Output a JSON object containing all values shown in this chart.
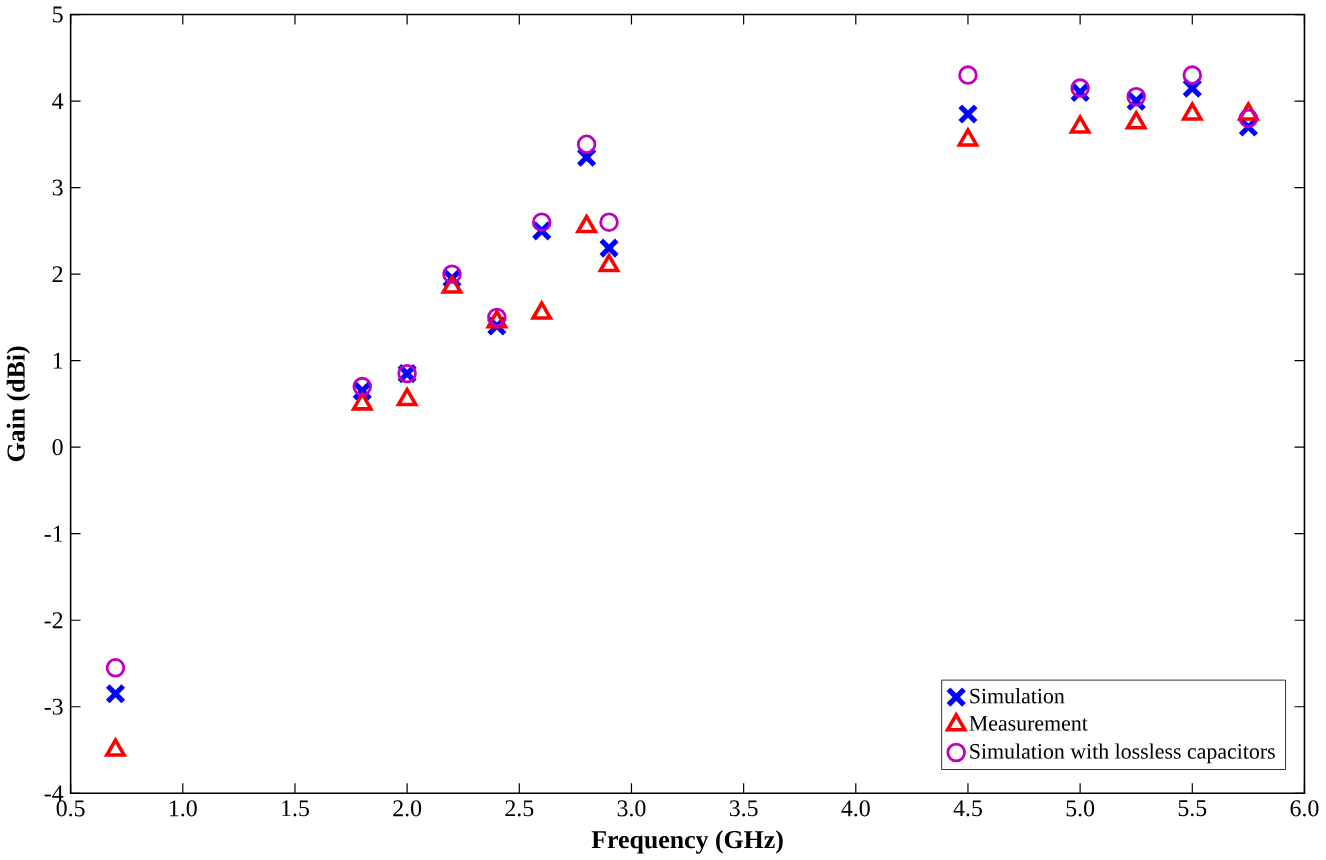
{
  "chart_data": {
    "type": "scatter",
    "xlabel": "Frequency (GHz)",
    "ylabel": "Gain (dBi)",
    "x": [
      0.7,
      1.8,
      2.0,
      2.2,
      2.4,
      2.6,
      2.8,
      2.9,
      4.5,
      5.0,
      5.25,
      5.5,
      5.75
    ],
    "series": [
      {
        "name": "Simulation",
        "color": "#0000ff",
        "marker": "cross",
        "values": [
          -2.85,
          0.65,
          0.85,
          1.95,
          1.4,
          2.5,
          3.35,
          2.3,
          3.85,
          4.1,
          4.0,
          4.15,
          3.7
        ]
      },
      {
        "name": "Measurement",
        "color": "#ff0000",
        "marker": "triangle",
        "values": [
          -3.5,
          0.5,
          0.55,
          1.85,
          1.45,
          1.55,
          2.55,
          2.1,
          3.55,
          3.7,
          3.75,
          3.85,
          3.85
        ]
      },
      {
        "name": "Simulation with lossless capacitors",
        "color": "#bf00bf",
        "marker": "circle",
        "values": [
          -2.55,
          0.7,
          0.85,
          2.0,
          1.5,
          2.6,
          3.5,
          2.6,
          4.3,
          4.15,
          4.05,
          4.3,
          3.8
        ]
      }
    ],
    "xlim": [
      0.5,
      6.0
    ],
    "ylim": [
      -4,
      5
    ],
    "xticks": [
      {
        "value": 0.5,
        "label": "0.5"
      },
      {
        "value": 1.0,
        "label": "1.0"
      },
      {
        "value": 1.5,
        "label": "1.5"
      },
      {
        "value": 2.0,
        "label": "2.0"
      },
      {
        "value": 2.5,
        "label": "2.5"
      },
      {
        "value": 3.0,
        "label": "3.0"
      },
      {
        "value": 3.5,
        "label": "3.5"
      },
      {
        "value": 4.0,
        "label": "4.0"
      },
      {
        "value": 4.5,
        "label": "4.5"
      },
      {
        "value": 5.0,
        "label": "5.0"
      },
      {
        "value": 5.5,
        "label": "5.5"
      },
      {
        "value": 6.0,
        "label": "6.0"
      }
    ],
    "yticks": [
      -4,
      -3,
      -2,
      -1,
      0,
      1,
      2,
      3,
      4,
      5
    ],
    "grid": false,
    "legend": "bottom right"
  }
}
